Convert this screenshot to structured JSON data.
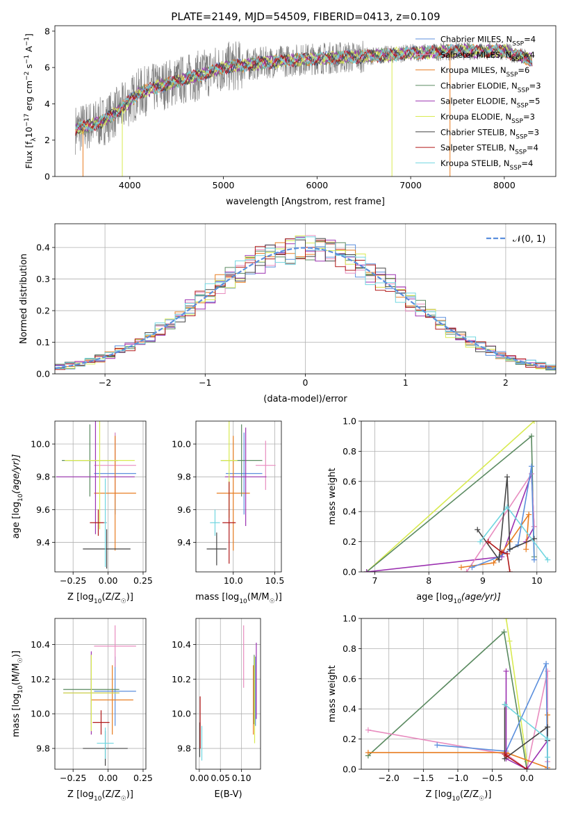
{
  "figure_title": "PLATE=2149, MJD=54509, FIBERID=0413, z=0.109",
  "colors": {
    "Chabrier MILES": "#5b8fdd",
    "Salpeter MILES": "#e88cbf",
    "Kroupa MILES": "#e87d20",
    "Chabrier ELODIE": "#5a8a60",
    "Salpeter ELODIE": "#9b30b0",
    "Kroupa ELODIE": "#d8ea50",
    "Chabrier STELIB": "#444444",
    "Salpeter STELIB": "#b01818",
    "Kroupa STELIB": "#70d6e0",
    "data": "#808080",
    "normal_curve": "#5b8fdd"
  },
  "chart_data": [
    {
      "id": "spectrum",
      "type": "line",
      "xlabel": "wavelength [Angstrom, rest frame]",
      "ylabel_text": "Flux [f",
      "ylabel_sub": "λ",
      "ylabel_rest": "10",
      "ylabel_exp1": "−17",
      "ylabel_mid": " erg cm",
      "ylabel_exp2": "−2",
      "ylabel_s": " s",
      "ylabel_exp3": "−1",
      "ylabel_A": " A",
      "ylabel_exp4": "−1",
      "ylabel_end": "]",
      "xlim": [
        3200,
        8550
      ],
      "ylim": [
        0,
        8.3
      ],
      "xticks": [
        4000,
        5000,
        6000,
        7000,
        8000
      ],
      "yticks": [
        0,
        2,
        4,
        6,
        8
      ],
      "grid": false,
      "data_range": [
        3420,
        8300
      ],
      "continuum": [
        [
          3420,
          2.6
        ],
        [
          3700,
          3.0
        ],
        [
          3900,
          3.7
        ],
        [
          4100,
          4.6
        ],
        [
          4400,
          5.1
        ],
        [
          4700,
          5.5
        ],
        [
          5000,
          6.0
        ],
        [
          5500,
          6.3
        ],
        [
          6000,
          6.5
        ],
        [
          6500,
          6.6
        ],
        [
          7000,
          6.8
        ],
        [
          7500,
          6.9
        ],
        [
          8000,
          6.9
        ],
        [
          8300,
          6.4
        ]
      ],
      "legend": [
        {
          "name": "Chabrier MILES",
          "n": "4"
        },
        {
          "name": "Salpeter MILES",
          "n": "4"
        },
        {
          "name": "Kroupa MILES",
          "n": "6"
        },
        {
          "name": "Chabrier ELODIE",
          "n": "3"
        },
        {
          "name": "Salpeter ELODIE",
          "n": "5"
        },
        {
          "name": "Kroupa ELODIE",
          "n": "3"
        },
        {
          "name": "Chabrier STELIB",
          "n": "3"
        },
        {
          "name": "Salpeter STELIB",
          "n": "4"
        },
        {
          "name": "Kroupa STELIB",
          "n": "4"
        }
      ],
      "legend_n_label": "N",
      "legend_n_sub": "SSP",
      "legend_placement": "right"
    },
    {
      "id": "residuals",
      "type": "histogram",
      "xlabel": "(data-model)/error",
      "ylabel": "Normed distribution",
      "xlim": [
        -2.5,
        2.5
      ],
      "ylim": [
        0,
        0.475
      ],
      "xticks": [
        -2,
        -1,
        0,
        1,
        2
      ],
      "xtick_labels": [
        "−2",
        "−1",
        "0",
        "1",
        "2"
      ],
      "yticks": [
        0.0,
        0.1,
        0.2,
        0.3,
        0.4
      ],
      "ytick_labels": [
        "0.0",
        "0.1",
        "0.2",
        "0.3",
        "0.4"
      ],
      "grid": true,
      "bin_width": 0.1,
      "legend": "𝒩(0, 1)",
      "legend_placement": "top-right",
      "normal": {
        "mu": 0,
        "sigma": 1
      }
    },
    {
      "id": "age_vs_Z",
      "type": "errorbar",
      "xlabel": "Z [log",
      "xlabel_sub": "10",
      "xlabel_rest": "(Z/Z",
      "xlabel_sun": "☉",
      "xlabel_end": ")]",
      "ylabel": "age  [log",
      "ylabel_sub": "10",
      "ylabel_rest": "(age/yr)]",
      "xlim": [
        -0.38,
        0.27
      ],
      "ylim": [
        9.22,
        10.14
      ],
      "xticks": [
        -0.25,
        0.0,
        0.25
      ],
      "xtick_labels": [
        "−0.25",
        "0.00",
        "0.25"
      ],
      "yticks": [
        9.4,
        9.6,
        9.8,
        10.0
      ],
      "ytick_labels": [
        "9.4",
        "9.6",
        "9.8",
        "10.0"
      ],
      "grid": true,
      "points": [
        {
          "model": "Chabrier MILES",
          "x": 0.05,
          "xerr": 0.15,
          "y": 9.82,
          "yerr": 0.25
        },
        {
          "model": "Salpeter MILES",
          "x": 0.05,
          "xerr": 0.15,
          "y": 9.87,
          "yerr": 0.2
        },
        {
          "model": "Kroupa MILES",
          "x": 0.05,
          "xerr": 0.15,
          "y": 9.7,
          "yerr": 0.35
        },
        {
          "model": "Chabrier ELODIE",
          "x": -0.13,
          "xerr": 0.2,
          "y": 9.9,
          "yerr": 0.22
        },
        {
          "model": "Salpeter ELODIE",
          "x": -0.09,
          "xerr": 0.28,
          "y": 9.8,
          "yerr": 0.35
        },
        {
          "model": "Kroupa ELODIE",
          "x": -0.06,
          "xerr": 0.25,
          "y": 9.9,
          "yerr": 0.42
        },
        {
          "model": "Chabrier STELIB",
          "x": -0.01,
          "xerr": 0.17,
          "y": 9.36,
          "yerr": 0.12
        },
        {
          "model": "Salpeter STELIB",
          "x": -0.07,
          "xerr": 0.06,
          "y": 9.52,
          "yerr": 0.08
        },
        {
          "model": "Kroupa STELIB",
          "x": -0.02,
          "xerr": 0.01,
          "y": 9.52,
          "yerr": 0.27
        }
      ]
    },
    {
      "id": "age_vs_mass",
      "type": "errorbar",
      "xlabel": "mass [log",
      "xlabel_sub": "10",
      "xlabel_rest": "(M/M",
      "xlabel_sun": "☉",
      "xlabel_end": ")]",
      "xlim": [
        9.55,
        10.58
      ],
      "ylim": [
        9.22,
        10.14
      ],
      "xticks": [
        10.0,
        10.5
      ],
      "xtick_labels": [
        "10.0",
        "10.5"
      ],
      "yticks": [
        9.4,
        9.6,
        9.8,
        10.0
      ],
      "ytick_labels": [
        "9.4",
        "9.6",
        "9.8",
        "10.0"
      ],
      "grid": true,
      "points": [
        {
          "model": "Chabrier MILES",
          "x": 10.13,
          "xerr": 0.22,
          "y": 9.82,
          "yerr": 0.25
        },
        {
          "model": "Salpeter MILES",
          "x": 10.39,
          "xerr": 0.12,
          "y": 9.87,
          "yerr": 0.15
        },
        {
          "model": "Kroupa MILES",
          "x": 10.0,
          "xerr": 0.2,
          "y": 9.7,
          "yerr": 0.35
        },
        {
          "model": "Chabrier ELODIE",
          "x": 10.1,
          "xerr": 0.25,
          "y": 9.9,
          "yerr": 0.22
        },
        {
          "model": "Salpeter ELODIE",
          "x": 10.15,
          "xerr": 0.25,
          "y": 9.8,
          "yerr": 0.3
        },
        {
          "model": "Kroupa ELODIE",
          "x": 9.95,
          "xerr": 0.1,
          "y": 9.9,
          "yerr": 0.35
        },
        {
          "model": "Chabrier STELIB",
          "x": 9.8,
          "xerr": 0.12,
          "y": 9.36,
          "yerr": 0.1
        },
        {
          "model": "Salpeter STELIB",
          "x": 9.95,
          "xerr": 0.08,
          "y": 9.52,
          "yerr": 0.25
        },
        {
          "model": "Kroupa STELIB",
          "x": 9.78,
          "xerr": 0.06,
          "y": 9.52,
          "yerr": 0.08
        }
      ]
    },
    {
      "id": "weight_vs_age",
      "type": "line",
      "xlabel": "age  [log",
      "xlabel_sub": "10",
      "xlabel_rest": "(age/yr)]",
      "ylabel": "mass weight",
      "xlim": [
        6.75,
        10.35
      ],
      "ylim": [
        0,
        1
      ],
      "xticks": [
        7,
        8,
        9,
        10
      ],
      "xtick_labels": [
        "7",
        "8",
        "9",
        "10"
      ],
      "yticks": [
        0.0,
        0.2,
        0.4,
        0.6,
        0.8,
        1.0
      ],
      "ytick_labels": [
        "0.0",
        "0.2",
        "0.4",
        "0.6",
        "0.8",
        "1.0"
      ],
      "grid": true,
      "series": [
        {
          "model": "Kroupa ELODIE",
          "x": [
            6.85,
            9.95
          ],
          "y": [
            0.0,
            1.0
          ]
        },
        {
          "model": "Chabrier ELODIE",
          "x": [
            6.85,
            9.9,
            9.95
          ],
          "y": [
            0.0,
            0.9,
            0.1
          ]
        },
        {
          "model": "Salpeter ELODIE",
          "x": [
            6.85,
            9.35,
            9.9,
            9.95,
            9.8
          ],
          "y": [
            0.0,
            0.1,
            0.65,
            0.3,
            0.2
          ]
        },
        {
          "model": "Salpeter MILES",
          "x": [
            8.7,
            9.9,
            9.95
          ],
          "y": [
            0.0,
            0.65,
            0.3
          ]
        },
        {
          "model": "Kroupa MILES",
          "x": [
            8.6,
            9.2,
            9.5,
            9.85,
            9.8
          ],
          "y": [
            0.03,
            0.06,
            0.2,
            0.38,
            0.15
          ]
        },
        {
          "model": "Chabrier MILES",
          "x": [
            8.8,
            9.3,
            9.65,
            9.9,
            9.95
          ],
          "y": [
            0.03,
            0.1,
            0.18,
            0.7,
            0.08
          ]
        },
        {
          "model": "Chabrier STELIB",
          "x": [
            8.9,
            9.3,
            9.45,
            9.5,
            9.95
          ],
          "y": [
            0.28,
            0.08,
            0.63,
            0.15,
            0.22
          ]
        },
        {
          "model": "Salpeter STELIB",
          "x": [
            9.1,
            9.35,
            9.45,
            9.5
          ],
          "y": [
            0.2,
            0.13,
            0.12,
            0.0
          ]
        },
        {
          "model": "Kroupa STELIB",
          "x": [
            8.95,
            9.45,
            10.2
          ],
          "y": [
            0.2,
            0.43,
            0.08
          ]
        }
      ]
    },
    {
      "id": "mass_vs_Z",
      "type": "errorbar",
      "xlabel": "Z [log",
      "xlabel_sub": "10",
      "xlabel_rest": "(Z/Z",
      "xlabel_sun": "☉",
      "xlabel_end": ")]",
      "ylabel": "mass [log",
      "ylabel_sub": "10",
      "ylabel_rest": "(M/M",
      "ylabel_sun": "☉",
      "ylabel_end": ")]",
      "xlim": [
        -0.38,
        0.27
      ],
      "ylim": [
        9.68,
        10.55
      ],
      "xticks": [
        -0.25,
        0.0,
        0.25
      ],
      "xtick_labels": [
        "−0.25",
        "0.00",
        "0.25"
      ],
      "yticks": [
        9.8,
        10.0,
        10.2,
        10.4
      ],
      "ytick_labels": [
        "9.8",
        "10.0",
        "10.2",
        "10.4"
      ],
      "grid": true,
      "points": [
        {
          "model": "Chabrier MILES",
          "x": 0.05,
          "xerr": 0.15,
          "y": 10.13,
          "yerr": 0.2
        },
        {
          "model": "Salpeter MILES",
          "x": 0.05,
          "xerr": 0.15,
          "y": 10.39,
          "yerr": 0.12
        },
        {
          "model": "Kroupa MILES",
          "x": 0.03,
          "xerr": 0.15,
          "y": 10.08,
          "yerr": 0.2
        },
        {
          "model": "Chabrier ELODIE",
          "x": -0.12,
          "xerr": 0.2,
          "y": 10.14,
          "yerr": 0.2
        },
        {
          "model": "Salpeter ELODIE",
          "x": -0.12,
          "xerr": 0.2,
          "y": 10.12,
          "yerr": 0.24
        },
        {
          "model": "Kroupa ELODIE",
          "x": -0.12,
          "xerr": 0.2,
          "y": 10.12,
          "yerr": 0.22
        },
        {
          "model": "Chabrier STELIB",
          "x": -0.02,
          "xerr": 0.16,
          "y": 9.8,
          "yerr": 0.1
        },
        {
          "model": "Salpeter STELIB",
          "x": -0.05,
          "xerr": 0.06,
          "y": 9.95,
          "yerr": 0.07
        },
        {
          "model": "Kroupa STELIB",
          "x": -0.02,
          "xerr": 0.06,
          "y": 9.83,
          "yerr": 0.09
        }
      ]
    },
    {
      "id": "mass_vs_ebv",
      "type": "errorbar",
      "xlabel": "E(B-V)",
      "xlim": [
        -0.008,
        0.145
      ],
      "ylim": [
        9.68,
        10.55
      ],
      "xticks": [
        0.0,
        0.05,
        0.1
      ],
      "xtick_labels": [
        "0.00",
        "0.05",
        "0.10"
      ],
      "yticks": [
        9.8,
        10.0,
        10.2,
        10.4
      ],
      "ytick_labels": [
        "9.8",
        "10.0",
        "10.2",
        "10.4"
      ],
      "grid": true,
      "points": [
        {
          "model": "Chabrier MILES",
          "x": 0.133,
          "xerr": 0,
          "y": 10.13,
          "yerr": 0.2
        },
        {
          "model": "Salpeter MILES",
          "x": 0.105,
          "xerr": 0,
          "y": 10.33,
          "yerr": 0.18
        },
        {
          "model": "Kroupa MILES",
          "x": 0.128,
          "xerr": 0,
          "y": 10.08,
          "yerr": 0.2
        },
        {
          "model": "Chabrier ELODIE",
          "x": 0.13,
          "xerr": 0,
          "y": 10.14,
          "yerr": 0.2
        },
        {
          "model": "Salpeter ELODIE",
          "x": 0.135,
          "xerr": 0,
          "y": 10.19,
          "yerr": 0.22
        },
        {
          "model": "Kroupa ELODIE",
          "x": 0.131,
          "xerr": 0,
          "y": 10.08,
          "yerr": 0.25
        },
        {
          "model": "Chabrier STELIB",
          "x": 0.001,
          "xerr": 0,
          "y": 9.85,
          "yerr": 0.1
        },
        {
          "model": "Salpeter STELIB",
          "x": 0.002,
          "xerr": 0,
          "y": 9.95,
          "yerr": 0.15
        },
        {
          "model": "Kroupa STELIB",
          "x": 0.006,
          "xerr": 0,
          "y": 9.83,
          "yerr": 0.1
        }
      ]
    },
    {
      "id": "weight_vs_Z",
      "type": "line",
      "xlabel": "Z [log",
      "xlabel_sub": "10",
      "xlabel_rest": "(Z/Z",
      "xlabel_sun": "☉",
      "xlabel_end": ")]",
      "ylabel": "mass weight",
      "xlim": [
        -2.4,
        0.42
      ],
      "ylim": [
        0,
        1
      ],
      "xticks": [
        -2.0,
        -1.5,
        -1.0,
        -0.5,
        0.0
      ],
      "xtick_labels": [
        "−2.0",
        "−1.5",
        "−1.0",
        "−0.5",
        "0.0"
      ],
      "yticks": [
        0.0,
        0.2,
        0.4,
        0.6,
        0.8,
        1.0
      ],
      "ytick_labels": [
        "0.0",
        "0.2",
        "0.4",
        "0.6",
        "0.8",
        "1.0"
      ],
      "grid": true,
      "series": [
        {
          "model": "Kroupa ELODIE",
          "x": [
            -0.3,
            -0.25,
            0.0
          ],
          "y": [
            1.0,
            0.85,
            0.05
          ]
        },
        {
          "model": "Chabrier ELODIE",
          "x": [
            -2.3,
            -0.33,
            0.0
          ],
          "y": [
            0.09,
            0.91,
            0.0
          ]
        },
        {
          "model": "Salpeter MILES",
          "x": [
            -2.3,
            -0.3,
            0.0,
            0.3,
            0.3
          ],
          "y": [
            0.26,
            0.1,
            0.0,
            0.65,
            0.05
          ]
        },
        {
          "model": "Kroupa MILES",
          "x": [
            -2.3,
            -0.3,
            0.3,
            0.3
          ],
          "y": [
            0.11,
            0.11,
            0.01,
            0.36
          ]
        },
        {
          "model": "Chabrier MILES",
          "x": [
            -1.3,
            -0.3,
            0.28,
            0.3
          ],
          "y": [
            0.16,
            0.12,
            0.7,
            0.0
          ]
        },
        {
          "model": "Salpeter ELODIE",
          "x": [
            -0.3,
            -0.3,
            0.0,
            0.3
          ],
          "y": [
            0.65,
            0.07,
            0.0,
            0.19
          ]
        },
        {
          "model": "Chabrier STELIB",
          "x": [
            -0.32,
            -0.32,
            0.3,
            0.3
          ],
          "y": [
            0.43,
            0.07,
            0.28,
            0.19
          ]
        },
        {
          "model": "Salpeter STELIB",
          "x": [
            -0.32,
            -0.3,
            0.0
          ],
          "y": [
            0.1,
            0.09,
            0.0
          ]
        },
        {
          "model": "Kroupa STELIB",
          "x": [
            -0.32,
            0.3,
            0.3
          ],
          "y": [
            0.43,
            0.2,
            0.08
          ]
        }
      ]
    }
  ]
}
